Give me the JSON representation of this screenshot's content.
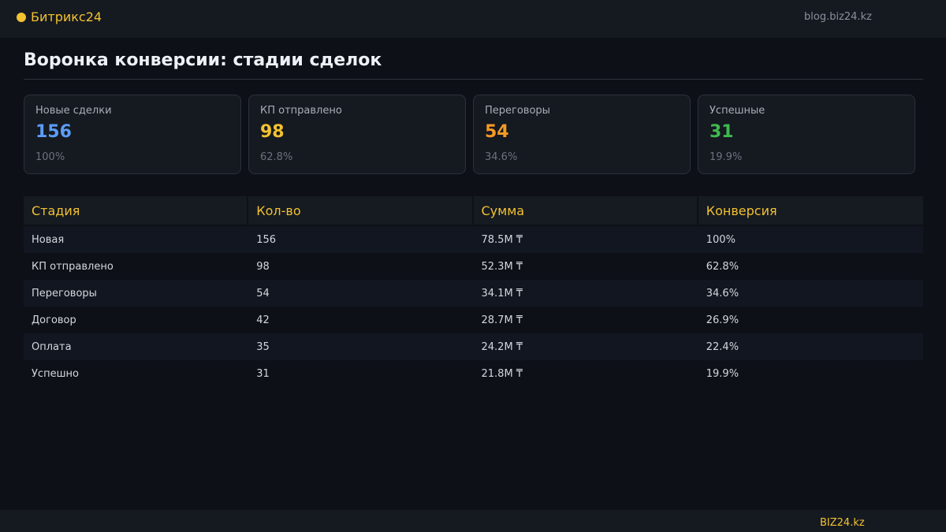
{
  "header": {
    "brand": "Битрикс24",
    "site_url": "blog.biz24.kz",
    "brand_color": "#f2c230"
  },
  "page": {
    "title": "Воронка конверсии: стадии сделок"
  },
  "cards": [
    {
      "label": "Новые сделки",
      "value": "156",
      "percent": "100%",
      "color": "#5b9cf6"
    },
    {
      "label": "КП отправлено",
      "value": "98",
      "percent": "62.8%",
      "color": "#f2c230"
    },
    {
      "label": "Переговоры",
      "value": "54",
      "percent": "34.6%",
      "color": "#f59a23"
    },
    {
      "label": "Успешные",
      "value": "31",
      "percent": "19.9%",
      "color": "#3fb950"
    }
  ],
  "table": {
    "columns": [
      "Стадия",
      "Кол-во",
      "Сумма",
      "Конверсия"
    ],
    "rows": [
      [
        "Новая",
        "156",
        "78.5M ₸",
        "100%"
      ],
      [
        "КП отправлено",
        "98",
        "52.3M ₸",
        "62.8%"
      ],
      [
        "Переговоры",
        "54",
        "34.1M ₸",
        "34.6%"
      ],
      [
        "Договор",
        "42",
        "28.7M ₸",
        "26.9%"
      ],
      [
        "Оплата",
        "35",
        "24.2M ₸",
        "22.4%"
      ],
      [
        "Успешно",
        "31",
        "21.8M ₸",
        "19.9%"
      ]
    ]
  },
  "footer": {
    "brand": "BIZ24.kz"
  }
}
